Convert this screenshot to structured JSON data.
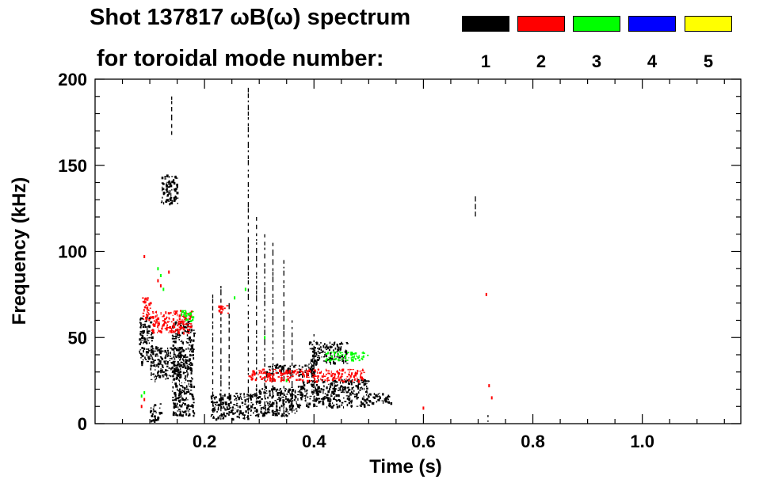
{
  "title": "Shot 137817 ωB(ω) spectrum",
  "subtitle": "for toroidal mode number:",
  "chart_data": {
    "type": "scatter",
    "title": "Shot 137817 ωB(ω) spectrum",
    "xlabel": "Time (s)",
    "ylabel": "Frequency (kHz)",
    "xlim": [
      0.0,
      1.18
    ],
    "ylim": [
      0,
      200
    ],
    "xticks": [
      0.2,
      0.4,
      0.6,
      0.8,
      1.0
    ],
    "xtick_labels": [
      "0.2",
      "0.4",
      "0.6",
      "0.8",
      "1.0"
    ],
    "yticks": [
      0,
      50,
      100,
      150,
      200
    ],
    "ytick_labels": [
      "0",
      "50",
      "100",
      "150",
      "200"
    ],
    "legend": {
      "label": "for toroidal mode number:",
      "placement": "top-right",
      "entries": [
        {
          "mode": "1",
          "color": "#000000"
        },
        {
          "mode": "2",
          "color": "#ff0000"
        },
        {
          "mode": "3",
          "color": "#00ff00"
        },
        {
          "mode": "4",
          "color": "#0000ff"
        },
        {
          "mode": "5",
          "color": "#ffff00"
        }
      ]
    },
    "series": [
      {
        "name": "n=1",
        "color": "#000000",
        "bands": [
          {
            "t": [
              0.08,
              0.105
            ],
            "f": [
              35,
              62
            ]
          },
          {
            "t": [
              0.1,
              0.16
            ],
            "f": [
              25,
              45
            ]
          },
          {
            "t": [
              0.14,
              0.18
            ],
            "f": [
              5,
              60
            ]
          },
          {
            "t": [
              0.12,
              0.15
            ],
            "f": [
              128,
              145
            ]
          },
          {
            "t": [
              0.1,
              0.12
            ],
            "f": [
              2,
              12
            ]
          },
          {
            "t": [
              0.21,
              0.29
            ],
            "f": [
              3,
              18
            ]
          },
          {
            "t": [
              0.29,
              0.37
            ],
            "f": [
              5,
              22
            ]
          },
          {
            "t": [
              0.37,
              0.5
            ],
            "f": [
              10,
              26
            ]
          },
          {
            "t": [
              0.5,
              0.54
            ],
            "f": [
              12,
              18
            ]
          },
          {
            "t": [
              0.31,
              0.4
            ],
            "f": [
              28,
              35
            ]
          },
          {
            "t": [
              0.39,
              0.46
            ],
            "f": [
              35,
              48
            ]
          }
        ],
        "lines": [
          {
            "t": 0.28,
            "f": [
              5,
              195
            ]
          },
          {
            "t": 0.295,
            "f": [
              5,
              120
            ]
          },
          {
            "t": 0.31,
            "f": [
              5,
              110
            ]
          },
          {
            "t": 0.325,
            "f": [
              5,
              105
            ]
          },
          {
            "t": 0.345,
            "f": [
              5,
              95
            ]
          },
          {
            "t": 0.36,
            "f": [
              5,
              60
            ]
          },
          {
            "t": 0.4,
            "f": [
              8,
              52
            ]
          },
          {
            "t": 0.695,
            "f": [
              120,
              132
            ]
          },
          {
            "t": 0.718,
            "f": [
              1,
              5
            ]
          },
          {
            "t": 0.14,
            "f": [
              165,
              190
            ]
          },
          {
            "t": 0.215,
            "f": [
              5,
              75
            ]
          },
          {
            "t": 0.23,
            "f": [
              5,
              80
            ]
          },
          {
            "t": 0.245,
            "f": [
              8,
              70
            ]
          }
        ]
      },
      {
        "name": "n=2",
        "color": "#ff0000",
        "bands": [
          {
            "t": [
              0.085,
              0.1
            ],
            "f": [
              60,
              74
            ]
          },
          {
            "t": [
              0.1,
              0.175
            ],
            "f": [
              53,
              66
            ]
          },
          {
            "t": [
              0.225,
              0.245
            ],
            "f": [
              64,
              69
            ]
          },
          {
            "t": [
              0.28,
              0.49
            ],
            "f": [
              25,
              32
            ]
          }
        ],
        "points": [
          {
            "t": 0.09,
            "f": 97
          },
          {
            "t": 0.115,
            "f": 83
          },
          {
            "t": 0.12,
            "f": 80
          },
          {
            "t": 0.085,
            "f": 10
          },
          {
            "t": 0.09,
            "f": 14
          },
          {
            "t": 0.6,
            "f": 9
          },
          {
            "t": 0.715,
            "f": 75
          },
          {
            "t": 0.72,
            "f": 22
          },
          {
            "t": 0.725,
            "f": 15
          },
          {
            "t": 0.135,
            "f": 88
          }
        ]
      },
      {
        "name": "n=3",
        "color": "#00ff00",
        "bands": [
          {
            "t": [
              0.155,
              0.18
            ],
            "f": [
              60,
              66
            ]
          },
          {
            "t": [
              0.42,
              0.5
            ],
            "f": [
              37,
              42
            ]
          }
        ],
        "points": [
          {
            "t": 0.085,
            "f": 16
          },
          {
            "t": 0.09,
            "f": 18
          },
          {
            "t": 0.115,
            "f": 90
          },
          {
            "t": 0.12,
            "f": 86
          },
          {
            "t": 0.125,
            "f": 78
          },
          {
            "t": 0.255,
            "f": 73
          },
          {
            "t": 0.275,
            "f": 78
          },
          {
            "t": 0.31,
            "f": 50
          },
          {
            "t": 0.35,
            "f": 25
          }
        ]
      },
      {
        "name": "n=4",
        "color": "#0000ff",
        "points": []
      },
      {
        "name": "n=5",
        "color": "#ffff00",
        "points": []
      }
    ]
  }
}
